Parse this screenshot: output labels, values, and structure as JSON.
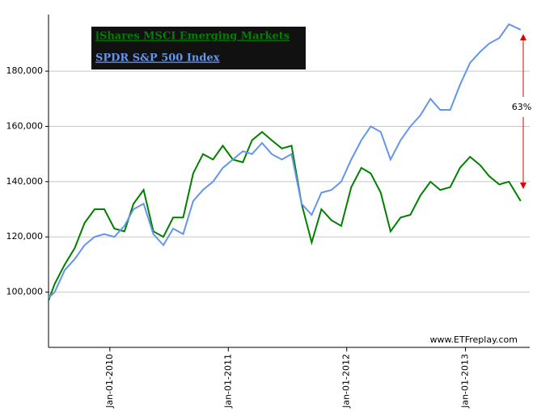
{
  "chart_data": {
    "type": "line",
    "x": [
      "2009-06-26",
      "2009-07-15",
      "2009-08-15",
      "2009-09-15",
      "2009-10-15",
      "2009-11-15",
      "2009-12-15",
      "2010-01-15",
      "2010-02-15",
      "2010-03-15",
      "2010-04-15",
      "2010-05-15",
      "2010-06-15",
      "2010-07-15",
      "2010-08-15",
      "2010-09-15",
      "2010-10-15",
      "2010-11-15",
      "2010-12-15",
      "2011-01-15",
      "2011-02-15",
      "2011-03-15",
      "2011-04-15",
      "2011-05-15",
      "2011-06-15",
      "2011-07-15",
      "2011-08-15",
      "2011-09-15",
      "2011-10-15",
      "2011-11-15",
      "2011-12-15",
      "2012-01-15",
      "2012-02-15",
      "2012-03-15",
      "2012-04-15",
      "2012-05-15",
      "2012-06-15",
      "2012-07-15",
      "2012-08-15",
      "2012-09-15",
      "2012-10-15",
      "2012-11-15",
      "2012-12-15",
      "2013-01-15",
      "2013-02-15",
      "2013-03-15",
      "2013-04-15",
      "2013-05-15",
      "2013-06-20"
    ],
    "series": [
      {
        "name": "iShares MSCI Emerging Markets",
        "color": "#008000",
        "values": [
          97000,
          103000,
          110000,
          116000,
          125000,
          130000,
          130000,
          123000,
          122000,
          132000,
          137000,
          122000,
          120000,
          127000,
          127000,
          143000,
          150000,
          148000,
          153000,
          148000,
          147000,
          155000,
          158000,
          155000,
          152000,
          153000,
          132000,
          118000,
          130000,
          126000,
          124000,
          138000,
          145000,
          143000,
          136000,
          122000,
          127000,
          128000,
          135000,
          140000,
          137000,
          138000,
          145000,
          149000,
          146000,
          142000,
          139000,
          140000,
          133000
        ]
      },
      {
        "name": "SPDR S&P 500 Index",
        "color": "#6495ed",
        "values": [
          98000,
          100000,
          108000,
          112000,
          117000,
          120000,
          121000,
          120000,
          124000,
          130000,
          132000,
          121000,
          117000,
          123000,
          121000,
          133000,
          137000,
          140000,
          145000,
          148000,
          151000,
          150000,
          154000,
          150000,
          148000,
          150000,
          132000,
          128000,
          136000,
          137000,
          140000,
          148000,
          155000,
          160000,
          158000,
          148000,
          155000,
          160000,
          164000,
          170000,
          166000,
          166000,
          175000,
          183000,
          187000,
          190000,
          192000,
          197000,
          195000
        ]
      }
    ],
    "xlim": [
      "2009-06-26",
      "2013-07-18"
    ],
    "xticks": [
      {
        "value": "2010-01-01",
        "label": "Jan-01-2010"
      },
      {
        "value": "2011-01-01",
        "label": "Jan-01-2011"
      },
      {
        "value": "2012-01-01",
        "label": "Jan-01-2012"
      },
      {
        "value": "2013-01-01",
        "label": "Jan-01-2013"
      }
    ],
    "ylim": [
      80000,
      200500
    ],
    "yticks": [
      {
        "value": 100000,
        "label": "100,000"
      },
      {
        "value": 120000,
        "label": "120,000"
      },
      {
        "value": 140000,
        "label": "140,000"
      },
      {
        "value": 160000,
        "label": "160,000"
      },
      {
        "value": 180000,
        "label": "180,000"
      }
    ],
    "grid": true,
    "annotations": [
      "63%",
      "www.ETFreplay.com"
    ]
  }
}
